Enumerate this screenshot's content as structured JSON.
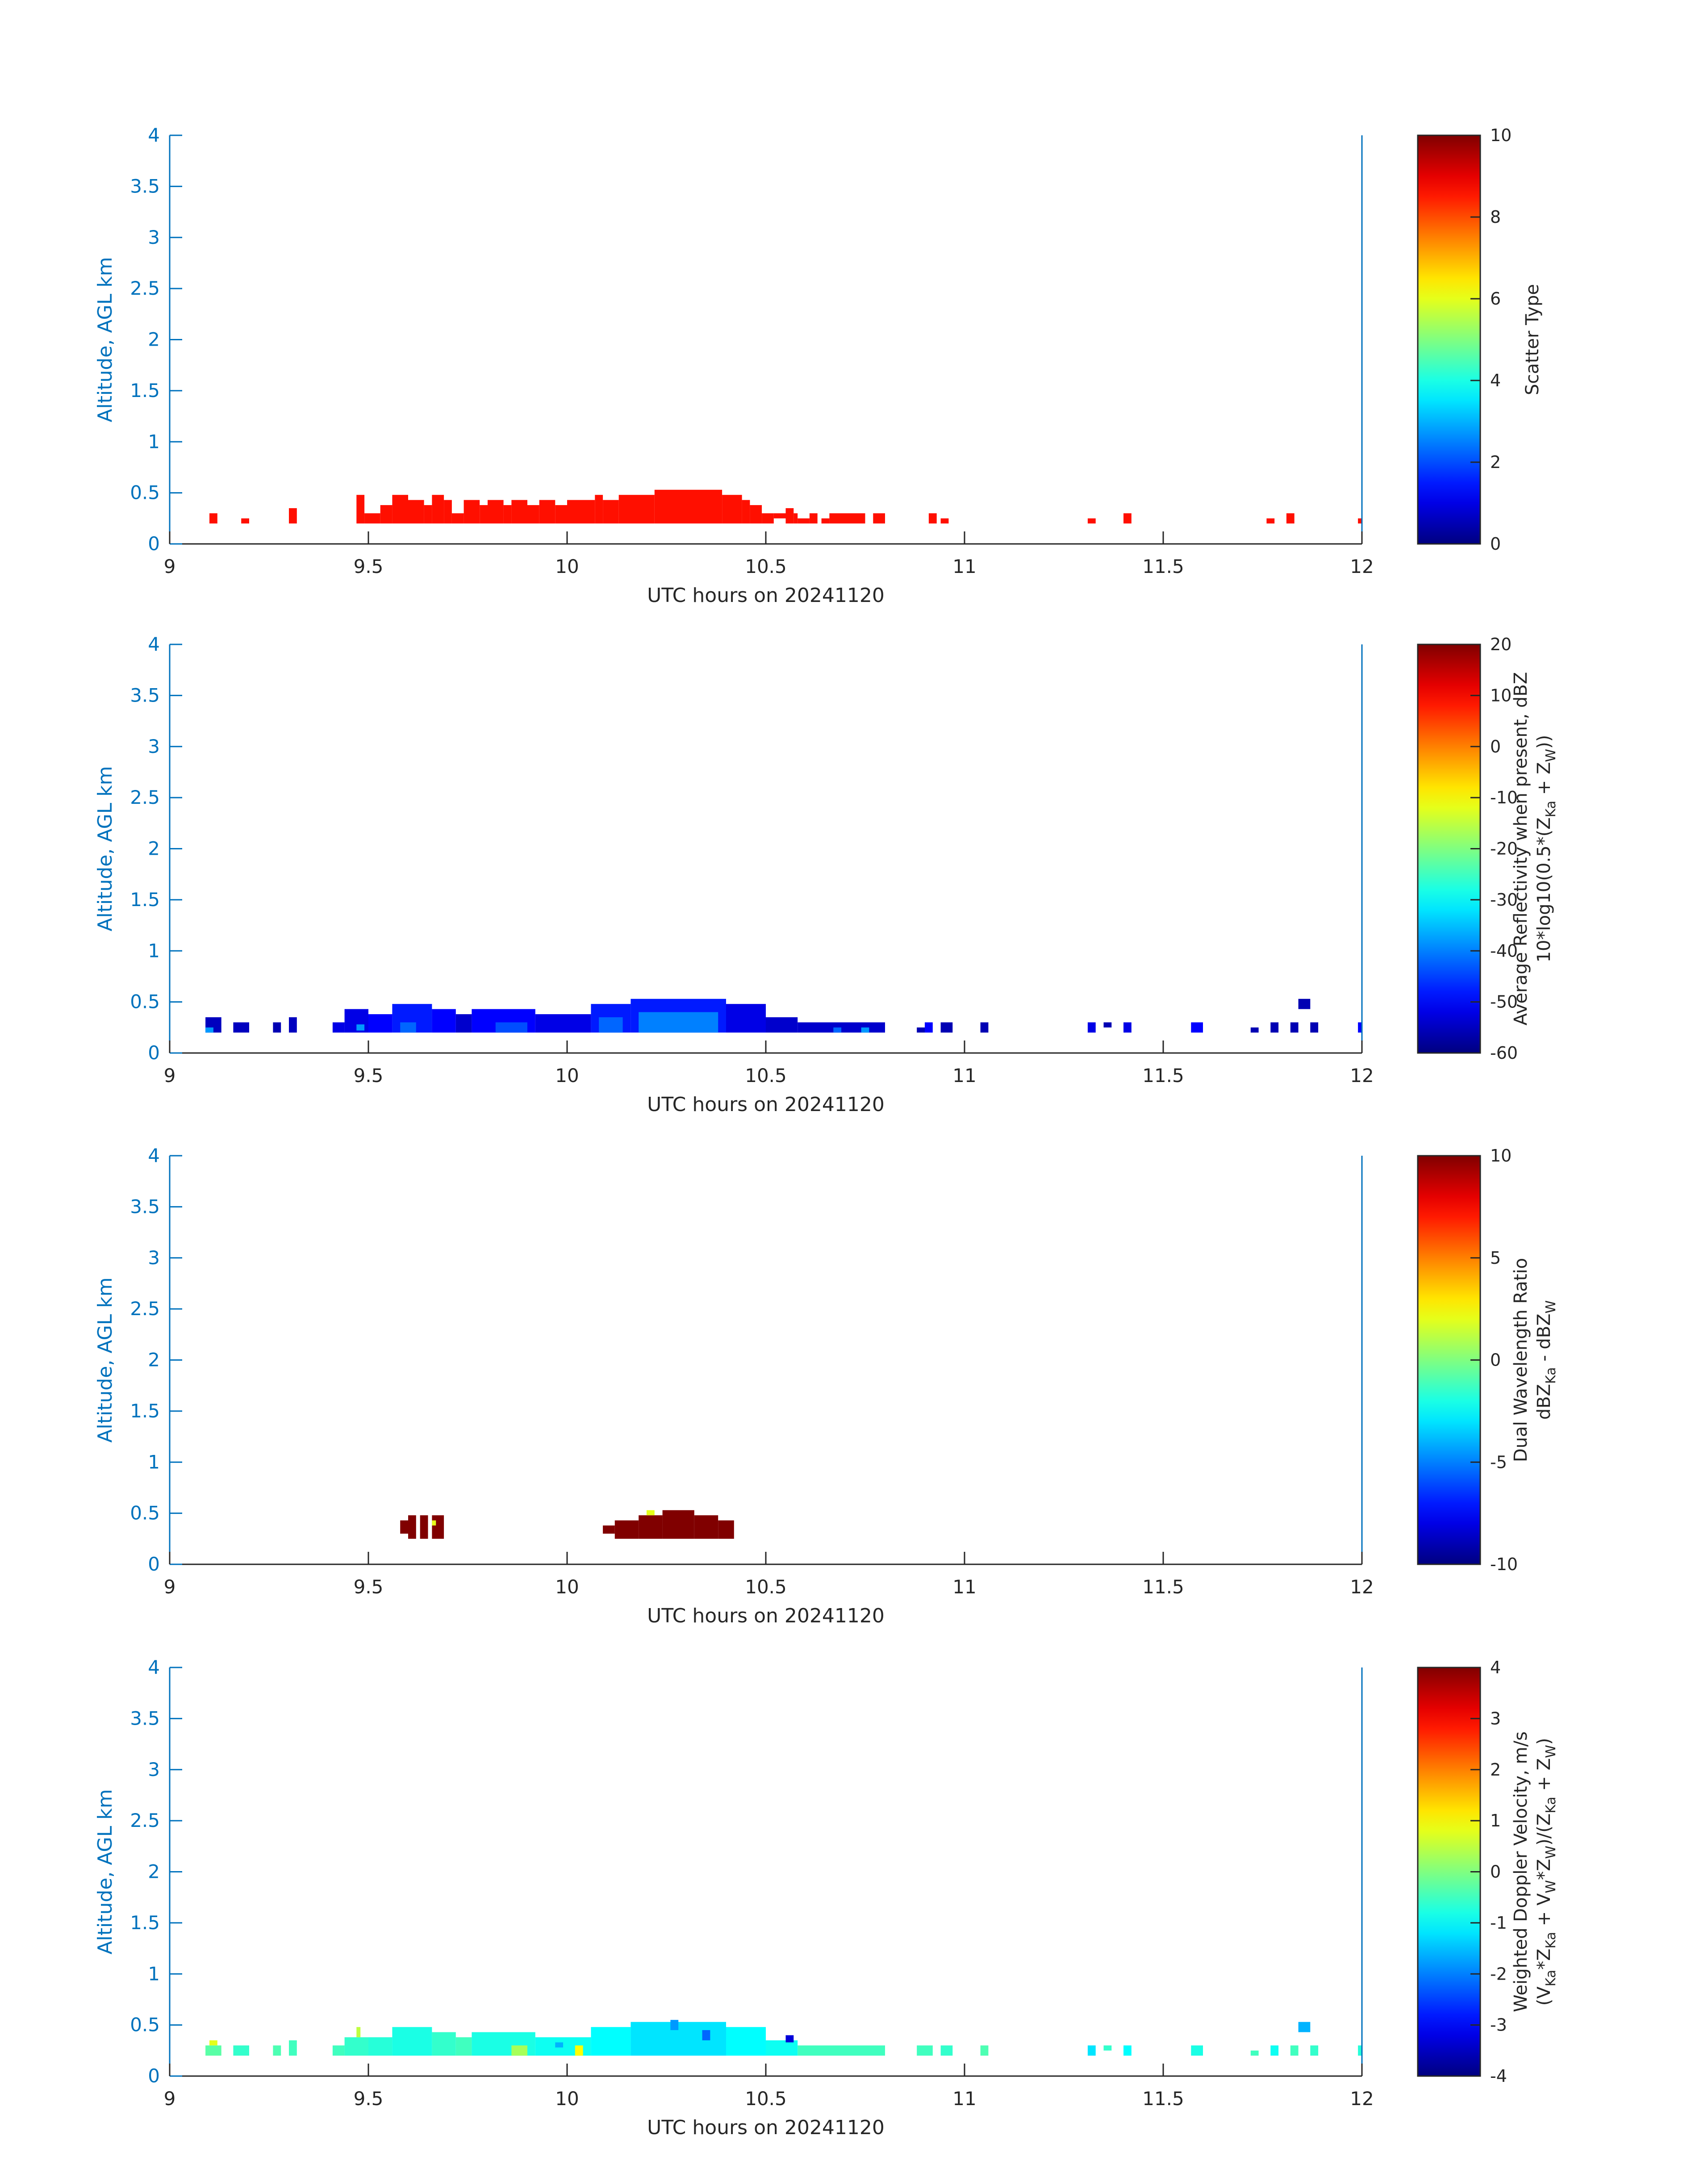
{
  "figure": {
    "colormap": "jet",
    "axis_color": "#0072bd",
    "text_color": "#262626"
  },
  "chart_data": [
    {
      "type": "heatmap",
      "xlabel": "UTC hours on 20241120",
      "ylabel": "Altitude, AGL km",
      "xlim": [
        9,
        12
      ],
      "ylim": [
        0,
        4
      ],
      "xticks": [
        "9",
        "9.5",
        "10",
        "10.5",
        "11",
        "11.5",
        "12"
      ],
      "yticks": [
        "0",
        "0.5",
        "1",
        "1.5",
        "2",
        "2.5",
        "3",
        "3.5",
        "4"
      ],
      "colorbar": {
        "label_lines": [
          "Scatter Type"
        ],
        "range": [
          0,
          10
        ],
        "ticks": [
          "0",
          "2",
          "4",
          "6",
          "8",
          "10"
        ]
      },
      "cell_value": 8.6,
      "columns": [
        {
          "x0": 9.1,
          "x1": 9.12,
          "y0": 0.2,
          "y1": 0.3
        },
        {
          "x0": 9.18,
          "x1": 9.2,
          "y0": 0.2,
          "y1": 0.25
        },
        {
          "x0": 9.3,
          "x1": 9.32,
          "y0": 0.2,
          "y1": 0.35
        },
        {
          "x0": 9.47,
          "x1": 9.49,
          "y0": 0.2,
          "y1": 0.48
        },
        {
          "x0": 9.49,
          "x1": 9.53,
          "y0": 0.2,
          "y1": 0.3
        },
        {
          "x0": 9.53,
          "x1": 9.56,
          "y0": 0.2,
          "y1": 0.38
        },
        {
          "x0": 9.56,
          "x1": 9.6,
          "y0": 0.2,
          "y1": 0.48
        },
        {
          "x0": 9.6,
          "x1": 9.64,
          "y0": 0.2,
          "y1": 0.43
        },
        {
          "x0": 9.64,
          "x1": 9.66,
          "y0": 0.2,
          "y1": 0.38
        },
        {
          "x0": 9.66,
          "x1": 9.69,
          "y0": 0.2,
          "y1": 0.48
        },
        {
          "x0": 9.69,
          "x1": 9.71,
          "y0": 0.2,
          "y1": 0.43
        },
        {
          "x0": 9.71,
          "x1": 9.74,
          "y0": 0.2,
          "y1": 0.3
        },
        {
          "x0": 9.74,
          "x1": 9.78,
          "y0": 0.2,
          "y1": 0.43
        },
        {
          "x0": 9.78,
          "x1": 9.8,
          "y0": 0.2,
          "y1": 0.38
        },
        {
          "x0": 9.8,
          "x1": 9.84,
          "y0": 0.2,
          "y1": 0.43
        },
        {
          "x0": 9.84,
          "x1": 9.86,
          "y0": 0.2,
          "y1": 0.38
        },
        {
          "x0": 9.86,
          "x1": 9.9,
          "y0": 0.2,
          "y1": 0.43
        },
        {
          "x0": 9.9,
          "x1": 9.93,
          "y0": 0.2,
          "y1": 0.38
        },
        {
          "x0": 9.93,
          "x1": 9.97,
          "y0": 0.2,
          "y1": 0.43
        },
        {
          "x0": 9.97,
          "x1": 10.0,
          "y0": 0.2,
          "y1": 0.38
        },
        {
          "x0": 10.0,
          "x1": 10.07,
          "y0": 0.2,
          "y1": 0.43
        },
        {
          "x0": 10.07,
          "x1": 10.09,
          "y0": 0.2,
          "y1": 0.48
        },
        {
          "x0": 10.09,
          "x1": 10.13,
          "y0": 0.2,
          "y1": 0.43
        },
        {
          "x0": 10.13,
          "x1": 10.22,
          "y0": 0.2,
          "y1": 0.48
        },
        {
          "x0": 10.22,
          "x1": 10.39,
          "y0": 0.2,
          "y1": 0.53
        },
        {
          "x0": 10.39,
          "x1": 10.44,
          "y0": 0.2,
          "y1": 0.48
        },
        {
          "x0": 10.44,
          "x1": 10.46,
          "y0": 0.2,
          "y1": 0.43
        },
        {
          "x0": 10.46,
          "x1": 10.49,
          "y0": 0.2,
          "y1": 0.38
        },
        {
          "x0": 10.49,
          "x1": 10.52,
          "y0": 0.2,
          "y1": 0.3
        },
        {
          "x0": 10.52,
          "x1": 10.55,
          "y0": 0.25,
          "y1": 0.3
        },
        {
          "x0": 10.55,
          "x1": 10.57,
          "y0": 0.2,
          "y1": 0.35
        },
        {
          "x0": 10.57,
          "x1": 10.58,
          "y0": 0.2,
          "y1": 0.3
        },
        {
          "x0": 10.58,
          "x1": 10.61,
          "y0": 0.2,
          "y1": 0.25
        },
        {
          "x0": 10.61,
          "x1": 10.63,
          "y0": 0.2,
          "y1": 0.3
        },
        {
          "x0": 10.64,
          "x1": 10.66,
          "y0": 0.2,
          "y1": 0.25
        },
        {
          "x0": 10.66,
          "x1": 10.75,
          "y0": 0.2,
          "y1": 0.3
        },
        {
          "x0": 10.77,
          "x1": 10.8,
          "y0": 0.2,
          "y1": 0.3
        },
        {
          "x0": 10.91,
          "x1": 10.93,
          "y0": 0.2,
          "y1": 0.3
        },
        {
          "x0": 10.94,
          "x1": 10.96,
          "y0": 0.2,
          "y1": 0.25
        },
        {
          "x0": 11.31,
          "x1": 11.33,
          "y0": 0.2,
          "y1": 0.25
        },
        {
          "x0": 11.4,
          "x1": 11.42,
          "y0": 0.2,
          "y1": 0.3
        },
        {
          "x0": 11.76,
          "x1": 11.78,
          "y0": 0.2,
          "y1": 0.25
        },
        {
          "x0": 11.81,
          "x1": 11.83,
          "y0": 0.2,
          "y1": 0.3
        },
        {
          "x0": 11.99,
          "x1": 12.0,
          "y0": 0.2,
          "y1": 0.25
        }
      ]
    },
    {
      "type": "heatmap",
      "xlabel": "UTC hours on 20241120",
      "ylabel": "Altitude, AGL km",
      "xlim": [
        9,
        12
      ],
      "ylim": [
        0,
        4
      ],
      "xticks": [
        "9",
        "9.5",
        "10",
        "10.5",
        "11",
        "11.5",
        "12"
      ],
      "yticks": [
        "0",
        "0.5",
        "1",
        "1.5",
        "2",
        "2.5",
        "3",
        "3.5",
        "4"
      ],
      "colorbar": {
        "label_lines": [
          "Average Reflectivity when present, dBZ",
          "10*log10(0.5*(Z<sub>Ka</sub> + Z<sub>W</sub>))"
        ],
        "range": [
          -60,
          20
        ],
        "ticks": [
          "-60",
          "-50",
          "-40",
          "-30",
          "-20",
          "-10",
          "0",
          "10",
          "20"
        ]
      },
      "cells": [
        {
          "x0": 9.09,
          "x1": 9.13,
          "y0": 0.2,
          "y1": 0.35,
          "v": -55
        },
        {
          "x0": 9.09,
          "x1": 9.11,
          "y0": 0.2,
          "y1": 0.25,
          "v": -38
        },
        {
          "x0": 9.16,
          "x1": 9.2,
          "y0": 0.2,
          "y1": 0.3,
          "v": -55
        },
        {
          "x0": 9.26,
          "x1": 9.28,
          "y0": 0.2,
          "y1": 0.3,
          "v": -56
        },
        {
          "x0": 9.3,
          "x1": 9.32,
          "y0": 0.2,
          "y1": 0.35,
          "v": -55
        },
        {
          "x0": 9.41,
          "x1": 9.44,
          "y0": 0.2,
          "y1": 0.3,
          "v": -52
        },
        {
          "x0": 9.44,
          "x1": 9.5,
          "y0": 0.2,
          "y1": 0.43,
          "v": -52
        },
        {
          "x0": 9.47,
          "x1": 9.49,
          "y0": 0.22,
          "y1": 0.28,
          "v": -38
        },
        {
          "x0": 9.5,
          "x1": 9.56,
          "y0": 0.2,
          "y1": 0.38,
          "v": -50
        },
        {
          "x0": 9.56,
          "x1": 9.66,
          "y0": 0.2,
          "y1": 0.48,
          "v": -48
        },
        {
          "x0": 9.58,
          "x1": 9.62,
          "y0": 0.2,
          "y1": 0.3,
          "v": -42
        },
        {
          "x0": 9.66,
          "x1": 9.72,
          "y0": 0.2,
          "y1": 0.43,
          "v": -50
        },
        {
          "x0": 9.72,
          "x1": 9.76,
          "y0": 0.2,
          "y1": 0.38,
          "v": -54
        },
        {
          "x0": 9.76,
          "x1": 9.92,
          "y0": 0.2,
          "y1": 0.43,
          "v": -50
        },
        {
          "x0": 9.82,
          "x1": 9.9,
          "y0": 0.2,
          "y1": 0.3,
          "v": -44
        },
        {
          "x0": 9.92,
          "x1": 10.06,
          "y0": 0.2,
          "y1": 0.38,
          "v": -52
        },
        {
          "x0": 10.06,
          "x1": 10.16,
          "y0": 0.2,
          "y1": 0.48,
          "v": -48
        },
        {
          "x0": 10.08,
          "x1": 10.14,
          "y0": 0.2,
          "y1": 0.35,
          "v": -42
        },
        {
          "x0": 10.16,
          "x1": 10.4,
          "y0": 0.2,
          "y1": 0.53,
          "v": -48
        },
        {
          "x0": 10.18,
          "x1": 10.38,
          "y0": 0.2,
          "y1": 0.4,
          "v": -40
        },
        {
          "x0": 10.4,
          "x1": 10.5,
          "y0": 0.2,
          "y1": 0.48,
          "v": -52
        },
        {
          "x0": 10.5,
          "x1": 10.58,
          "y0": 0.2,
          "y1": 0.35,
          "v": -54
        },
        {
          "x0": 10.58,
          "x1": 10.8,
          "y0": 0.2,
          "y1": 0.3,
          "v": -54
        },
        {
          "x0": 10.67,
          "x1": 10.69,
          "y0": 0.2,
          "y1": 0.25,
          "v": -42
        },
        {
          "x0": 10.74,
          "x1": 10.76,
          "y0": 0.2,
          "y1": 0.25,
          "v": -38
        },
        {
          "x0": 10.88,
          "x1": 10.9,
          "y0": 0.2,
          "y1": 0.25,
          "v": -56
        },
        {
          "x0": 10.9,
          "x1": 10.92,
          "y0": 0.2,
          "y1": 0.3,
          "v": -50
        },
        {
          "x0": 10.94,
          "x1": 10.97,
          "y0": 0.2,
          "y1": 0.3,
          "v": -56
        },
        {
          "x0": 11.04,
          "x1": 11.06,
          "y0": 0.2,
          "y1": 0.3,
          "v": -56
        },
        {
          "x0": 11.31,
          "x1": 11.33,
          "y0": 0.2,
          "y1": 0.3,
          "v": -52
        },
        {
          "x0": 11.35,
          "x1": 11.37,
          "y0": 0.25,
          "y1": 0.3,
          "v": -56
        },
        {
          "x0": 11.4,
          "x1": 11.42,
          "y0": 0.2,
          "y1": 0.3,
          "v": -52
        },
        {
          "x0": 11.57,
          "x1": 11.6,
          "y0": 0.2,
          "y1": 0.3,
          "v": -50
        },
        {
          "x0": 11.72,
          "x1": 11.74,
          "y0": 0.2,
          "y1": 0.25,
          "v": -56
        },
        {
          "x0": 11.77,
          "x1": 11.79,
          "y0": 0.2,
          "y1": 0.3,
          "v": -56
        },
        {
          "x0": 11.82,
          "x1": 11.84,
          "y0": 0.2,
          "y1": 0.3,
          "v": -56
        },
        {
          "x0": 11.84,
          "x1": 11.87,
          "y0": 0.43,
          "y1": 0.53,
          "v": -56
        },
        {
          "x0": 11.87,
          "x1": 11.89,
          "y0": 0.2,
          "y1": 0.3,
          "v": -56
        },
        {
          "x0": 11.99,
          "x1": 12.0,
          "y0": 0.2,
          "y1": 0.3,
          "v": -50
        }
      ]
    },
    {
      "type": "heatmap",
      "xlabel": "UTC hours on 20241120",
      "ylabel": "Altitude, AGL km",
      "xlim": [
        9,
        12
      ],
      "ylim": [
        0,
        4
      ],
      "xticks": [
        "9",
        "9.5",
        "10",
        "10.5",
        "11",
        "11.5",
        "12"
      ],
      "yticks": [
        "0",
        "0.5",
        "1",
        "1.5",
        "2",
        "2.5",
        "3",
        "3.5",
        "4"
      ],
      "colorbar": {
        "label_lines": [
          "Dual Wavelength Ratio",
          "dBZ<sub>Ka</sub> - dBZ<sub>W</sub>"
        ],
        "range": [
          -10,
          10
        ],
        "ticks": [
          "-10",
          "-5",
          "0",
          "5",
          "10"
        ]
      },
      "cells": [
        {
          "x0": 9.58,
          "x1": 9.6,
          "y0": 0.3,
          "y1": 0.43,
          "v": 10
        },
        {
          "x0": 9.6,
          "x1": 9.62,
          "y0": 0.25,
          "y1": 0.48,
          "v": 10
        },
        {
          "x0": 9.63,
          "x1": 9.65,
          "y0": 0.25,
          "y1": 0.48,
          "v": 10
        },
        {
          "x0": 9.66,
          "x1": 9.69,
          "y0": 0.25,
          "y1": 0.48,
          "v": 10
        },
        {
          "x0": 9.66,
          "x1": 9.67,
          "y0": 0.38,
          "y1": 0.43,
          "v": 2
        },
        {
          "x0": 10.09,
          "x1": 10.12,
          "y0": 0.3,
          "y1": 0.38,
          "v": 10
        },
        {
          "x0": 10.12,
          "x1": 10.18,
          "y0": 0.25,
          "y1": 0.43,
          "v": 10
        },
        {
          "x0": 10.18,
          "x1": 10.24,
          "y0": 0.25,
          "y1": 0.48,
          "v": 10
        },
        {
          "x0": 10.2,
          "x1": 10.22,
          "y0": 0.48,
          "y1": 0.53,
          "v": 2
        },
        {
          "x0": 10.24,
          "x1": 10.32,
          "y0": 0.25,
          "y1": 0.53,
          "v": 10
        },
        {
          "x0": 10.32,
          "x1": 10.38,
          "y0": 0.25,
          "y1": 0.48,
          "v": 10
        },
        {
          "x0": 10.38,
          "x1": 10.42,
          "y0": 0.25,
          "y1": 0.43,
          "v": 10
        }
      ]
    },
    {
      "type": "heatmap",
      "xlabel": "UTC hours on 20241120",
      "ylabel": "Altitude, AGL km",
      "xlim": [
        9,
        12
      ],
      "ylim": [
        0,
        4
      ],
      "xticks": [
        "9",
        "9.5",
        "10",
        "10.5",
        "11",
        "11.5",
        "12"
      ],
      "yticks": [
        "0",
        "0.5",
        "1",
        "1.5",
        "2",
        "2.5",
        "3",
        "3.5",
        "4"
      ],
      "colorbar": {
        "label_lines": [
          "Weighted Doppler Velocity, m/s",
          "(V<sub>Ka</sub>*Z<sub>Ka</sub> + V<sub>W</sub>*Z<sub>W</sub>)/(Z<sub>Ka</sub> + Z<sub>W</sub>)"
        ],
        "range": [
          -4,
          4
        ],
        "ticks": [
          "-4",
          "-3",
          "-2",
          "-1",
          "0",
          "1",
          "2",
          "3",
          "4"
        ]
      },
      "cells": [
        {
          "x0": 9.09,
          "x1": 9.13,
          "y0": 0.2,
          "y1": 0.3,
          "v": -0.3
        },
        {
          "x0": 9.1,
          "x1": 9.12,
          "y0": 0.3,
          "y1": 0.35,
          "v": 0.8
        },
        {
          "x0": 9.16,
          "x1": 9.2,
          "y0": 0.2,
          "y1": 0.3,
          "v": -0.6
        },
        {
          "x0": 9.26,
          "x1": 9.28,
          "y0": 0.2,
          "y1": 0.3,
          "v": -0.4
        },
        {
          "x0": 9.3,
          "x1": 9.32,
          "y0": 0.2,
          "y1": 0.35,
          "v": -0.5
        },
        {
          "x0": 9.41,
          "x1": 9.44,
          "y0": 0.2,
          "y1": 0.3,
          "v": -0.5
        },
        {
          "x0": 9.44,
          "x1": 9.5,
          "y0": 0.2,
          "y1": 0.38,
          "v": -0.6
        },
        {
          "x0": 9.47,
          "x1": 9.48,
          "y0": 0.38,
          "y1": 0.48,
          "v": 0.5
        },
        {
          "x0": 9.5,
          "x1": 9.56,
          "y0": 0.2,
          "y1": 0.38,
          "v": -0.7
        },
        {
          "x0": 9.56,
          "x1": 9.66,
          "y0": 0.2,
          "y1": 0.48,
          "v": -0.8
        },
        {
          "x0": 9.66,
          "x1": 9.72,
          "y0": 0.2,
          "y1": 0.43,
          "v": -0.6
        },
        {
          "x0": 9.72,
          "x1": 9.76,
          "y0": 0.2,
          "y1": 0.38,
          "v": -0.5
        },
        {
          "x0": 9.76,
          "x1": 9.92,
          "y0": 0.2,
          "y1": 0.43,
          "v": -0.8
        },
        {
          "x0": 9.86,
          "x1": 9.9,
          "y0": 0.2,
          "y1": 0.3,
          "v": 0.3
        },
        {
          "x0": 9.92,
          "x1": 10.06,
          "y0": 0.2,
          "y1": 0.38,
          "v": -0.9
        },
        {
          "x0": 9.97,
          "x1": 9.99,
          "y0": 0.28,
          "y1": 0.33,
          "v": -1.6
        },
        {
          "x0": 10.02,
          "x1": 10.04,
          "y0": 0.2,
          "y1": 0.3,
          "v": 1.0
        },
        {
          "x0": 10.06,
          "x1": 10.16,
          "y0": 0.2,
          "y1": 0.48,
          "v": -1.0
        },
        {
          "x0": 10.16,
          "x1": 10.4,
          "y0": 0.2,
          "y1": 0.53,
          "v": -1.2
        },
        {
          "x0": 10.26,
          "x1": 10.28,
          "y0": 0.45,
          "y1": 0.55,
          "v": -1.8
        },
        {
          "x0": 10.34,
          "x1": 10.36,
          "y0": 0.35,
          "y1": 0.45,
          "v": -2.2
        },
        {
          "x0": 10.4,
          "x1": 10.5,
          "y0": 0.2,
          "y1": 0.48,
          "v": -1.0
        },
        {
          "x0": 10.5,
          "x1": 10.58,
          "y0": 0.2,
          "y1": 0.35,
          "v": -0.9
        },
        {
          "x0": 10.55,
          "x1": 10.57,
          "y0": 0.33,
          "y1": 0.4,
          "v": -3.3
        },
        {
          "x0": 10.58,
          "x1": 10.8,
          "y0": 0.2,
          "y1": 0.3,
          "v": -0.5
        },
        {
          "x0": 10.88,
          "x1": 10.92,
          "y0": 0.2,
          "y1": 0.3,
          "v": -0.5
        },
        {
          "x0": 10.94,
          "x1": 10.97,
          "y0": 0.2,
          "y1": 0.3,
          "v": -0.6
        },
        {
          "x0": 11.04,
          "x1": 11.06,
          "y0": 0.2,
          "y1": 0.3,
          "v": -0.4
        },
        {
          "x0": 11.31,
          "x1": 11.33,
          "y0": 0.2,
          "y1": 0.3,
          "v": -1.2
        },
        {
          "x0": 11.35,
          "x1": 11.37,
          "y0": 0.25,
          "y1": 0.3,
          "v": -0.6
        },
        {
          "x0": 11.4,
          "x1": 11.42,
          "y0": 0.2,
          "y1": 0.3,
          "v": -1.0
        },
        {
          "x0": 11.57,
          "x1": 11.6,
          "y0": 0.2,
          "y1": 0.3,
          "v": -0.8
        },
        {
          "x0": 11.72,
          "x1": 11.74,
          "y0": 0.2,
          "y1": 0.25,
          "v": -0.5
        },
        {
          "x0": 11.77,
          "x1": 11.79,
          "y0": 0.2,
          "y1": 0.3,
          "v": -0.9
        },
        {
          "x0": 11.82,
          "x1": 11.84,
          "y0": 0.2,
          "y1": 0.3,
          "v": -0.5
        },
        {
          "x0": 11.84,
          "x1": 11.87,
          "y0": 0.43,
          "y1": 0.53,
          "v": -1.6
        },
        {
          "x0": 11.87,
          "x1": 11.89,
          "y0": 0.2,
          "y1": 0.3,
          "v": -0.6
        },
        {
          "x0": 11.99,
          "x1": 12.0,
          "y0": 0.2,
          "y1": 0.3,
          "v": -0.7
        }
      ]
    }
  ]
}
